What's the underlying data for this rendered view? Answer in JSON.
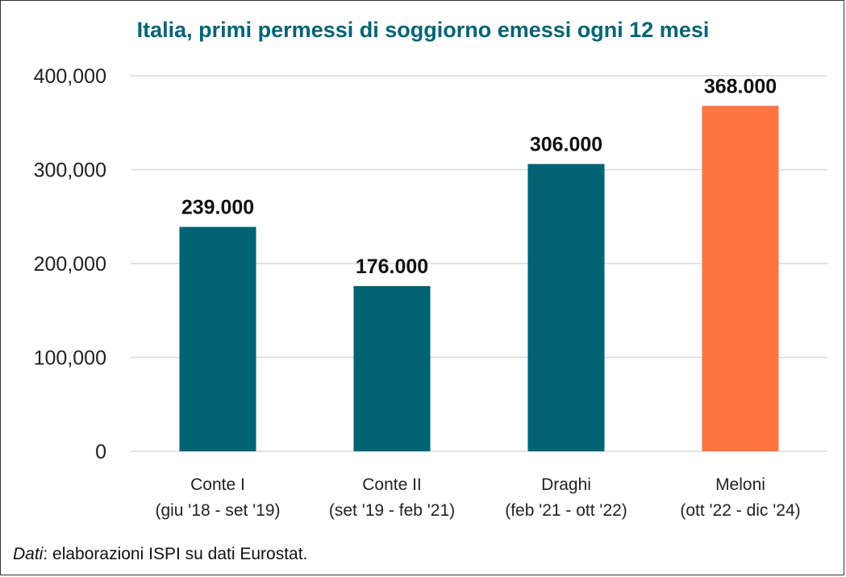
{
  "chart_data": {
    "type": "bar",
    "title": "Italia, primi permessi di soggiorno emessi ogni 12 mesi",
    "categories": [
      [
        "Conte I",
        "(giu '18 - set '19)"
      ],
      [
        "Conte II",
        "(set '19 - feb '21)"
      ],
      [
        "Draghi",
        "(feb '21 - ott '22)"
      ],
      [
        "Meloni",
        "(ott '22 - dic '24)"
      ]
    ],
    "values": [
      239000,
      176000,
      306000,
      368000
    ],
    "data_labels": [
      "239.000",
      "176.000",
      "306.000",
      "368.000"
    ],
    "bar_colors": [
      "#006374",
      "#006374",
      "#006374",
      "#FF7443"
    ],
    "yticks": [
      0,
      100000,
      200000,
      300000,
      400000
    ],
    "ytick_labels": [
      "0",
      "100,000",
      "200,000",
      "300,000",
      "400,000"
    ],
    "ylim": [
      0,
      400000
    ],
    "grid": true,
    "xlabel": "",
    "ylabel": ""
  },
  "source": {
    "label": "Dati",
    "text": ": elaborazioni ISPI su dati Eurostat."
  },
  "colors": {
    "title": "#006374",
    "grid": "#D9D9D9"
  }
}
